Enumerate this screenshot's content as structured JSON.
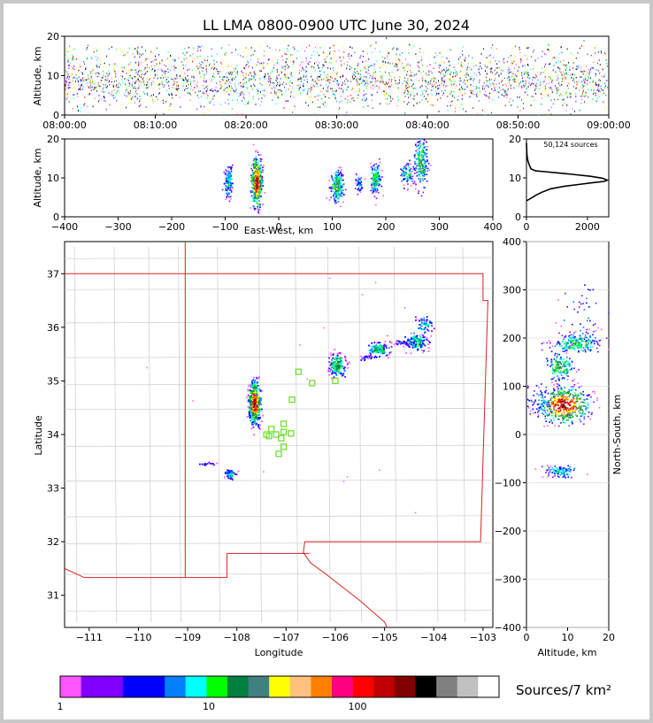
{
  "title": "LL LMA 0800-0900 UTC June 30, 2024",
  "chart_data": [
    {
      "type": "scatter",
      "name": "time-height",
      "ylabel": "Altitude, km",
      "xticks": [
        "08:00:00",
        "08:10:00",
        "08:20:00",
        "08:30:00",
        "08:40:00",
        "08:50:00",
        "09:00:00"
      ],
      "xlim_minutes": [
        0,
        60
      ],
      "ylim": [
        0,
        20
      ],
      "yticks": [
        0,
        10,
        20
      ]
    },
    {
      "type": "scatter",
      "name": "east-west-height",
      "xlabel": "East-West, km",
      "ylabel": "Altitude, km",
      "xlim": [
        -400,
        400
      ],
      "xticks": [
        -400,
        -300,
        -200,
        -100,
        0,
        100,
        200,
        300,
        400
      ],
      "ylim": [
        0,
        20
      ],
      "yticks": [
        0,
        10,
        20
      ],
      "clusters_x_km": [
        -95,
        -42,
        108,
        150,
        180,
        240,
        265
      ]
    },
    {
      "type": "line",
      "name": "altitude-histogram",
      "annotation": "50,124 sources",
      "xlim": [
        0,
        2700
      ],
      "xticks": [
        0,
        2000
      ],
      "ylim": [
        0,
        20
      ],
      "yticks": [
        0,
        10,
        20
      ],
      "peak": {
        "x": 2650,
        "y": 9.3
      }
    },
    {
      "type": "scatter",
      "name": "plan-view",
      "xlabel": "Longitude",
      "ylabel": "Latitude",
      "xlim": [
        -111.5,
        -102.8
      ],
      "ylim": [
        30.4,
        37.6
      ],
      "xticks": [
        -111,
        -110,
        -109,
        -108,
        -107,
        -106,
        -105,
        -104,
        -103
      ],
      "yticks": [
        31,
        32,
        33,
        34,
        35,
        36,
        37
      ],
      "stations": [
        [
          -106.75,
          35.17
        ],
        [
          -106.47,
          34.96
        ],
        [
          -106.0,
          35.0
        ],
        [
          -106.88,
          34.65
        ],
        [
          -107.05,
          34.2
        ],
        [
          -107.05,
          34.05
        ],
        [
          -107.1,
          33.93
        ],
        [
          -107.05,
          33.77
        ],
        [
          -107.15,
          33.64
        ],
        [
          -107.3,
          34.1
        ],
        [
          -107.2,
          34.0
        ],
        [
          -107.4,
          34.0
        ],
        [
          -107.35,
          33.97
        ],
        [
          -106.9,
          34.02
        ]
      ]
    },
    {
      "type": "scatter",
      "name": "north-south-height",
      "xlabel": "Altitude, km",
      "ylabel": "North-South, km",
      "xlim": [
        0,
        20
      ],
      "xticks": [
        0,
        10,
        20
      ],
      "ylim": [
        -400,
        400
      ],
      "yticks": [
        -400,
        -300,
        -200,
        -100,
        0,
        100,
        200,
        300,
        400
      ]
    }
  ],
  "colorbar": {
    "label": "Sources/7 km²",
    "ticks": [
      "1",
      "10",
      "100"
    ],
    "colors": [
      "#ff55ff",
      "#8000ff",
      "#7f00ff",
      "#0000ff",
      "#0000ff",
      "#0080ff",
      "#00ffff",
      "#00ff00",
      "#008040",
      "#408080",
      "#ffff00",
      "#ffc080",
      "#ff8000",
      "#ff0080",
      "#ff0000",
      "#c00000",
      "#800000",
      "#000000",
      "#808080",
      "#c0c0c0",
      "#ffffff"
    ]
  }
}
